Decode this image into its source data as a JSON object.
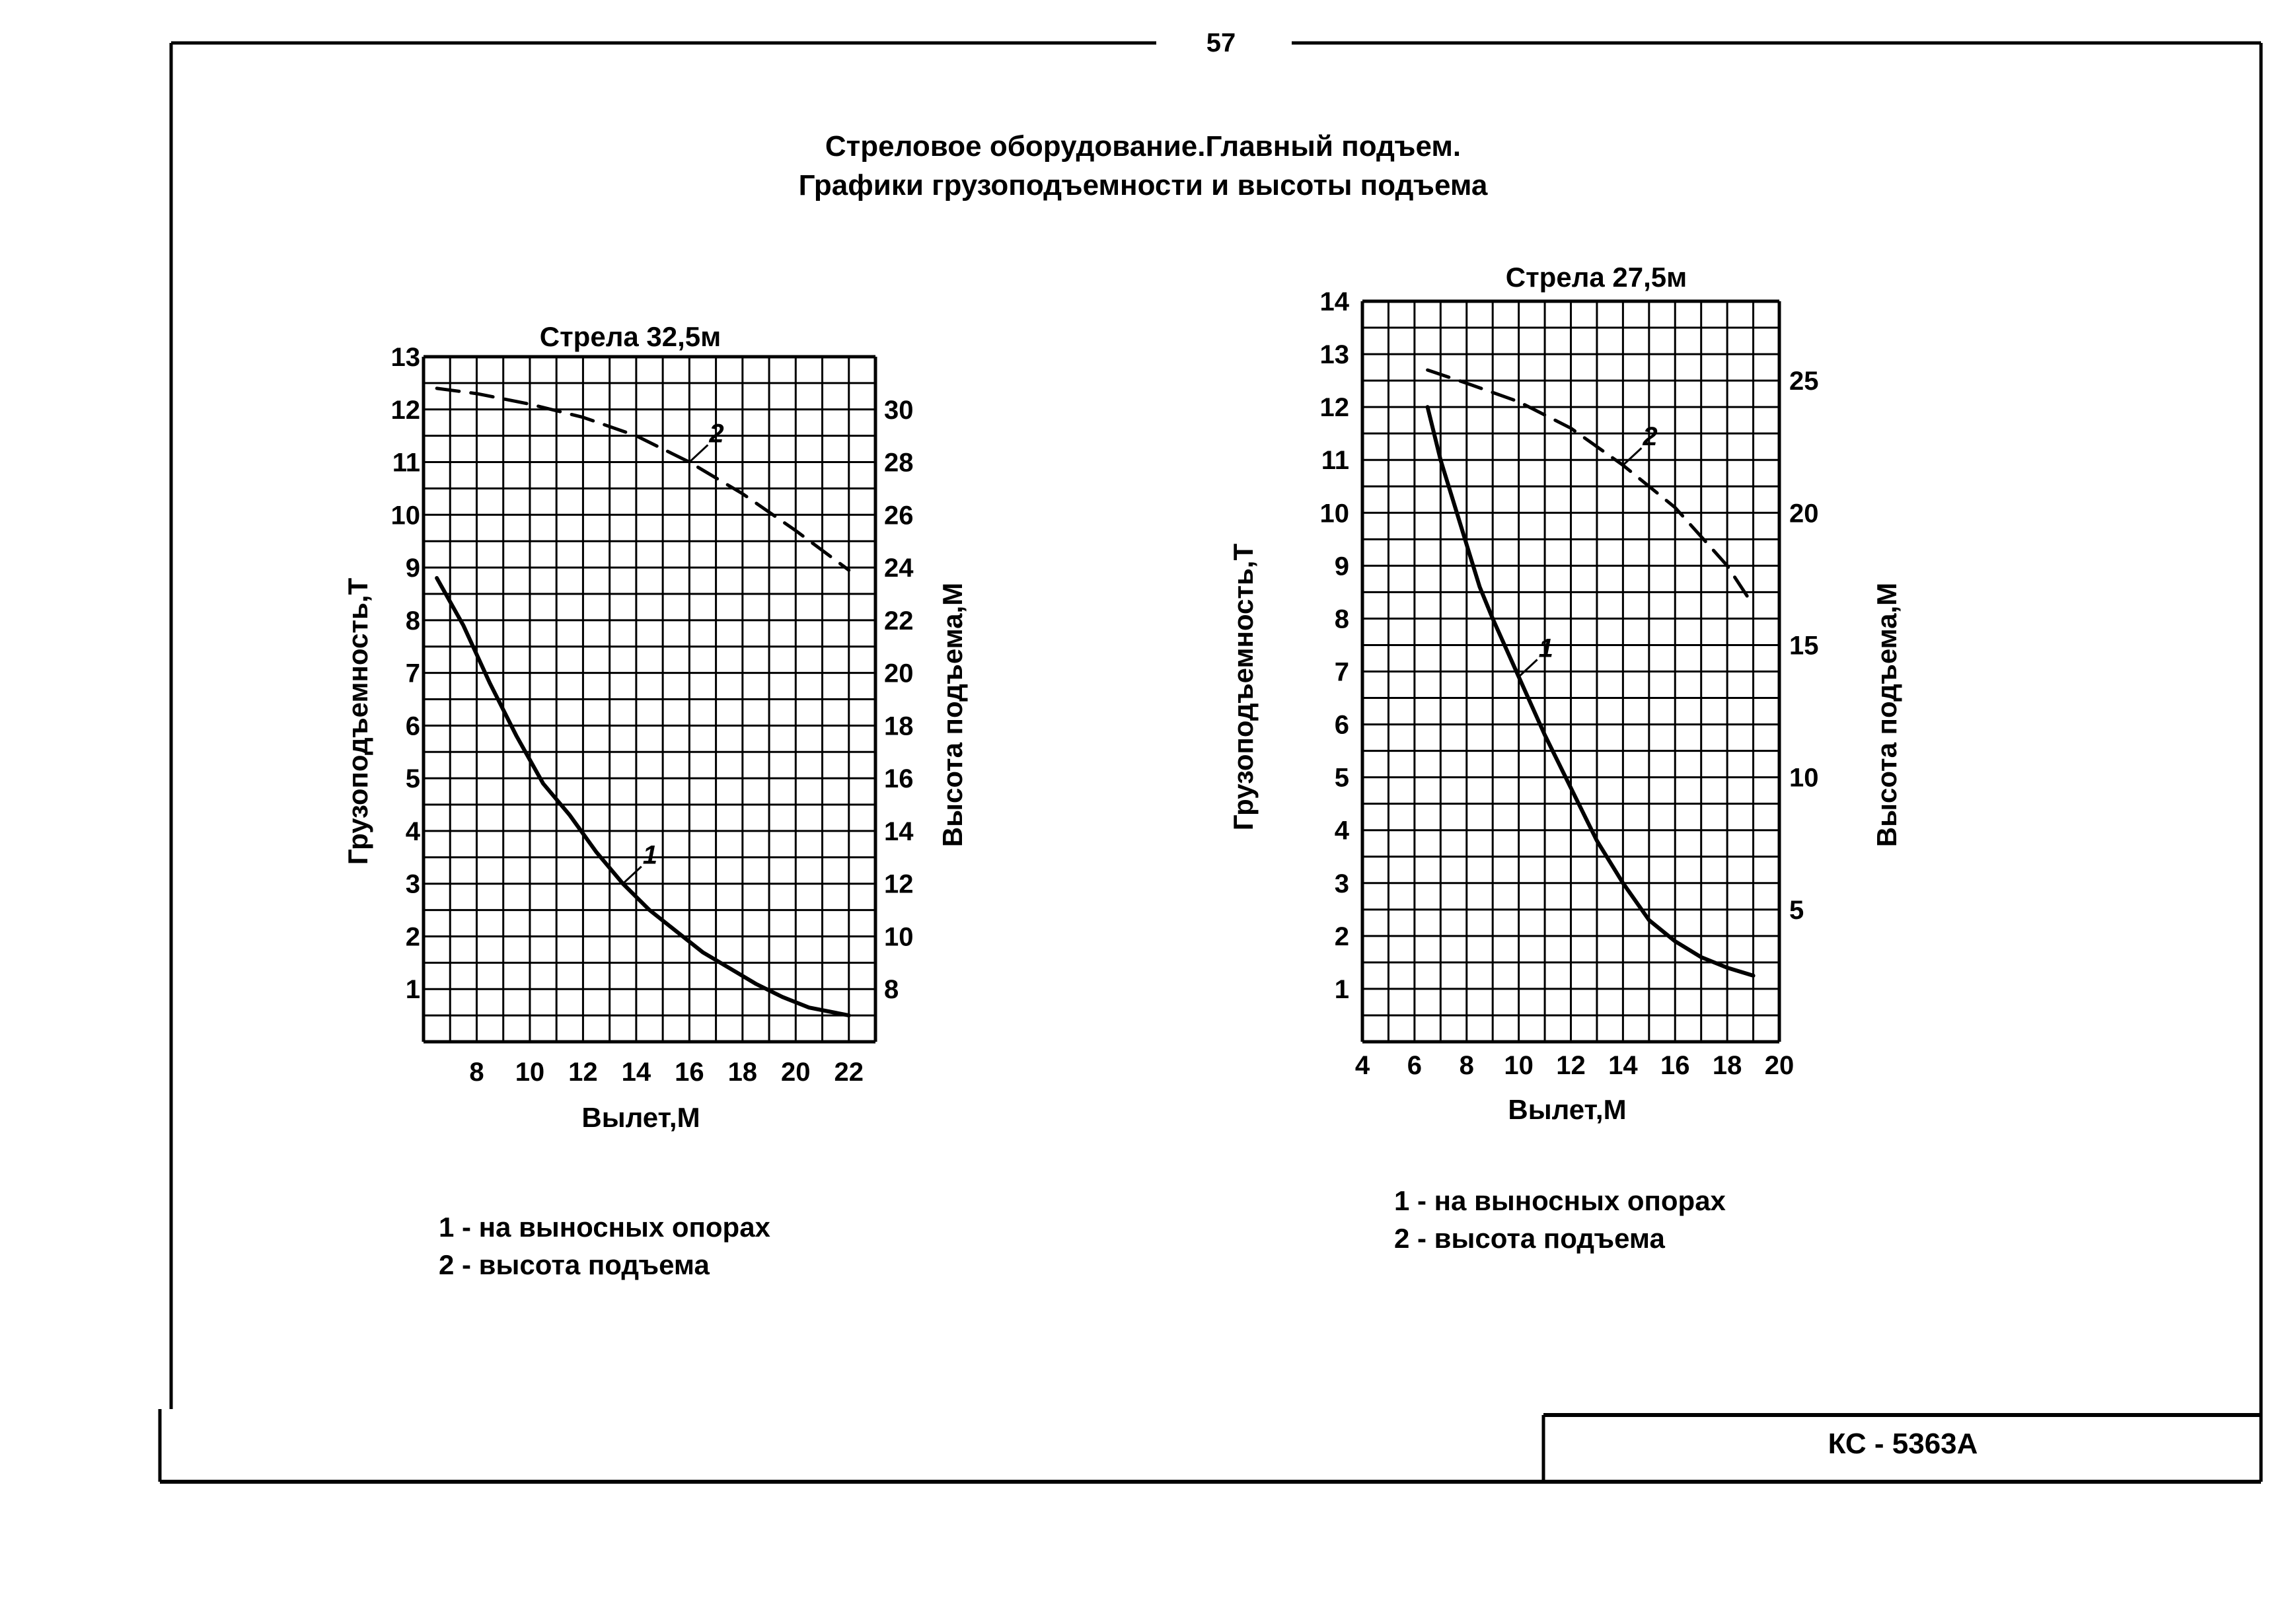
{
  "page": {
    "number": "57",
    "title_line1": "Стреловое оборудование.Главный подъем.",
    "title_line2": "Графики грузоподъемности и высоты подъема",
    "stamp": "КС - 5363А"
  },
  "chart_data": [
    {
      "type": "line",
      "title": "Стрела 32,5м",
      "xlabel": "Вылет,М",
      "ylabel": "Грузоподъемность,Т",
      "y2label": "Высота подъема,М",
      "xlim": [
        6,
        23
      ],
      "ylim": [
        0,
        13
      ],
      "y2lim": [
        6,
        32
      ],
      "x_ticks": [
        8,
        10,
        12,
        14,
        16,
        18,
        20,
        22
      ],
      "y_ticks": [
        1,
        2,
        3,
        4,
        5,
        6,
        7,
        8,
        9,
        10,
        11,
        12,
        13
      ],
      "y2_ticks": [
        8,
        10,
        12,
        14,
        16,
        18,
        20,
        22,
        24,
        26,
        28,
        30
      ],
      "grid": true,
      "series": [
        {
          "name": "1",
          "axis": "left",
          "style": "solid",
          "x": [
            6.5,
            7.5,
            8.5,
            9.5,
            10.5,
            11.5,
            12.5,
            13.5,
            14.5,
            15.5,
            16.5,
            17.5,
            18.5,
            19.5,
            20.5,
            21.5,
            22
          ],
          "y": [
            8.8,
            7.9,
            6.8,
            5.8,
            4.9,
            4.3,
            3.6,
            3.0,
            2.5,
            2.1,
            1.7,
            1.4,
            1.1,
            0.85,
            0.65,
            0.55,
            0.5
          ]
        },
        {
          "name": "2",
          "axis": "right",
          "style": "dashed",
          "x": [
            6.5,
            8,
            10,
            12,
            14,
            16,
            18,
            20,
            22
          ],
          "y": [
            30.8,
            30.6,
            30.2,
            29.7,
            29.0,
            28.0,
            26.8,
            25.4,
            23.9
          ]
        }
      ],
      "legend": [
        "1 - на выносных опорах",
        "2 - высота подъема"
      ]
    },
    {
      "type": "line",
      "title": "Стрела 27,5м",
      "xlabel": "Вылет,М",
      "ylabel": "Грузоподъемность,Т",
      "y2label": "Высота подъема,М",
      "xlim": [
        4,
        20
      ],
      "ylim": [
        0,
        14
      ],
      "y2lim": [
        0,
        28
      ],
      "x_ticks": [
        4,
        6,
        8,
        10,
        12,
        14,
        16,
        18,
        20
      ],
      "y_ticks": [
        1,
        2,
        3,
        4,
        5,
        6,
        7,
        8,
        9,
        10,
        11,
        12,
        13,
        14
      ],
      "y2_ticks": [
        5,
        10,
        15,
        20,
        25
      ],
      "grid": true,
      "series": [
        {
          "name": "1",
          "axis": "left",
          "style": "solid",
          "x": [
            6.5,
            7,
            7.5,
            8,
            8.5,
            9,
            10,
            11,
            12,
            13,
            14,
            15,
            16,
            17,
            18,
            19
          ],
          "y": [
            12.0,
            11.0,
            10.2,
            9.4,
            8.6,
            8.0,
            6.9,
            5.8,
            4.8,
            3.8,
            3.0,
            2.3,
            1.9,
            1.6,
            1.4,
            1.25
          ]
        },
        {
          "name": "2",
          "axis": "right",
          "style": "dashed",
          "x": [
            6.5,
            8,
            10,
            12,
            14,
            16,
            18,
            19
          ],
          "y": [
            25.4,
            24.9,
            24.2,
            23.2,
            21.8,
            20.2,
            18.0,
            16.5
          ]
        }
      ],
      "legend": [
        "1 - на выносных опорах",
        "2 - высота подъема"
      ]
    }
  ]
}
